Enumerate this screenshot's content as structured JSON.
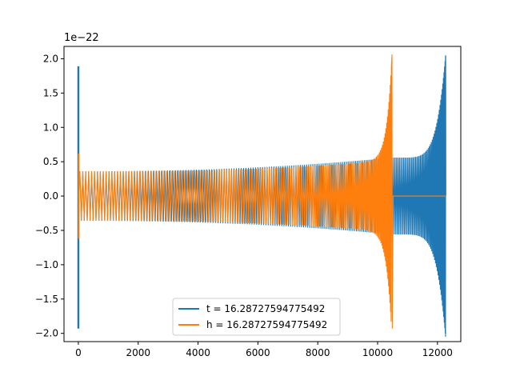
{
  "chart_data": {
    "type": "line",
    "title": "",
    "xlabel": "",
    "ylabel": "",
    "y_offset_label": "1e−22",
    "xlim": [
      -480,
      12780
    ],
    "ylim": [
      -2.12,
      2.18
    ],
    "x_ticks": [
      0,
      2000,
      4000,
      6000,
      8000,
      10000,
      12000
    ],
    "x_tick_labels": [
      "0",
      "2000",
      "4000",
      "6000",
      "8000",
      "10000",
      "12000"
    ],
    "y_ticks": [
      -2.0,
      -1.5,
      -1.0,
      -0.5,
      0.0,
      0.5,
      1.0,
      1.5,
      2.0
    ],
    "y_tick_labels": [
      "−2.0",
      "−1.5",
      "−1.0",
      "−0.5",
      "0.0",
      "0.5",
      "1.0",
      "1.5",
      "2.0"
    ],
    "grid": false,
    "legend_position": "lower center",
    "series": [
      {
        "name": "t = 16.28727594775492",
        "color": "#1f77b4",
        "initial_spike": 1.89,
        "initial_spike_min": -1.93,
        "start_amplitude": 0.36,
        "amplitude_at_10500": 0.56,
        "peak_amplitude": 2.05,
        "end_x": 12280,
        "peak_x": 12270
      },
      {
        "name": "h = 16.28727594775492",
        "color": "#ff7f0e",
        "initial_spike": 0.62,
        "start_amplitude": 0.36,
        "peak_amplitude": 2.06,
        "peak_x": 10480,
        "flat_after_x": 10520,
        "flat_value": 0.0,
        "end_x": 12280
      }
    ]
  }
}
